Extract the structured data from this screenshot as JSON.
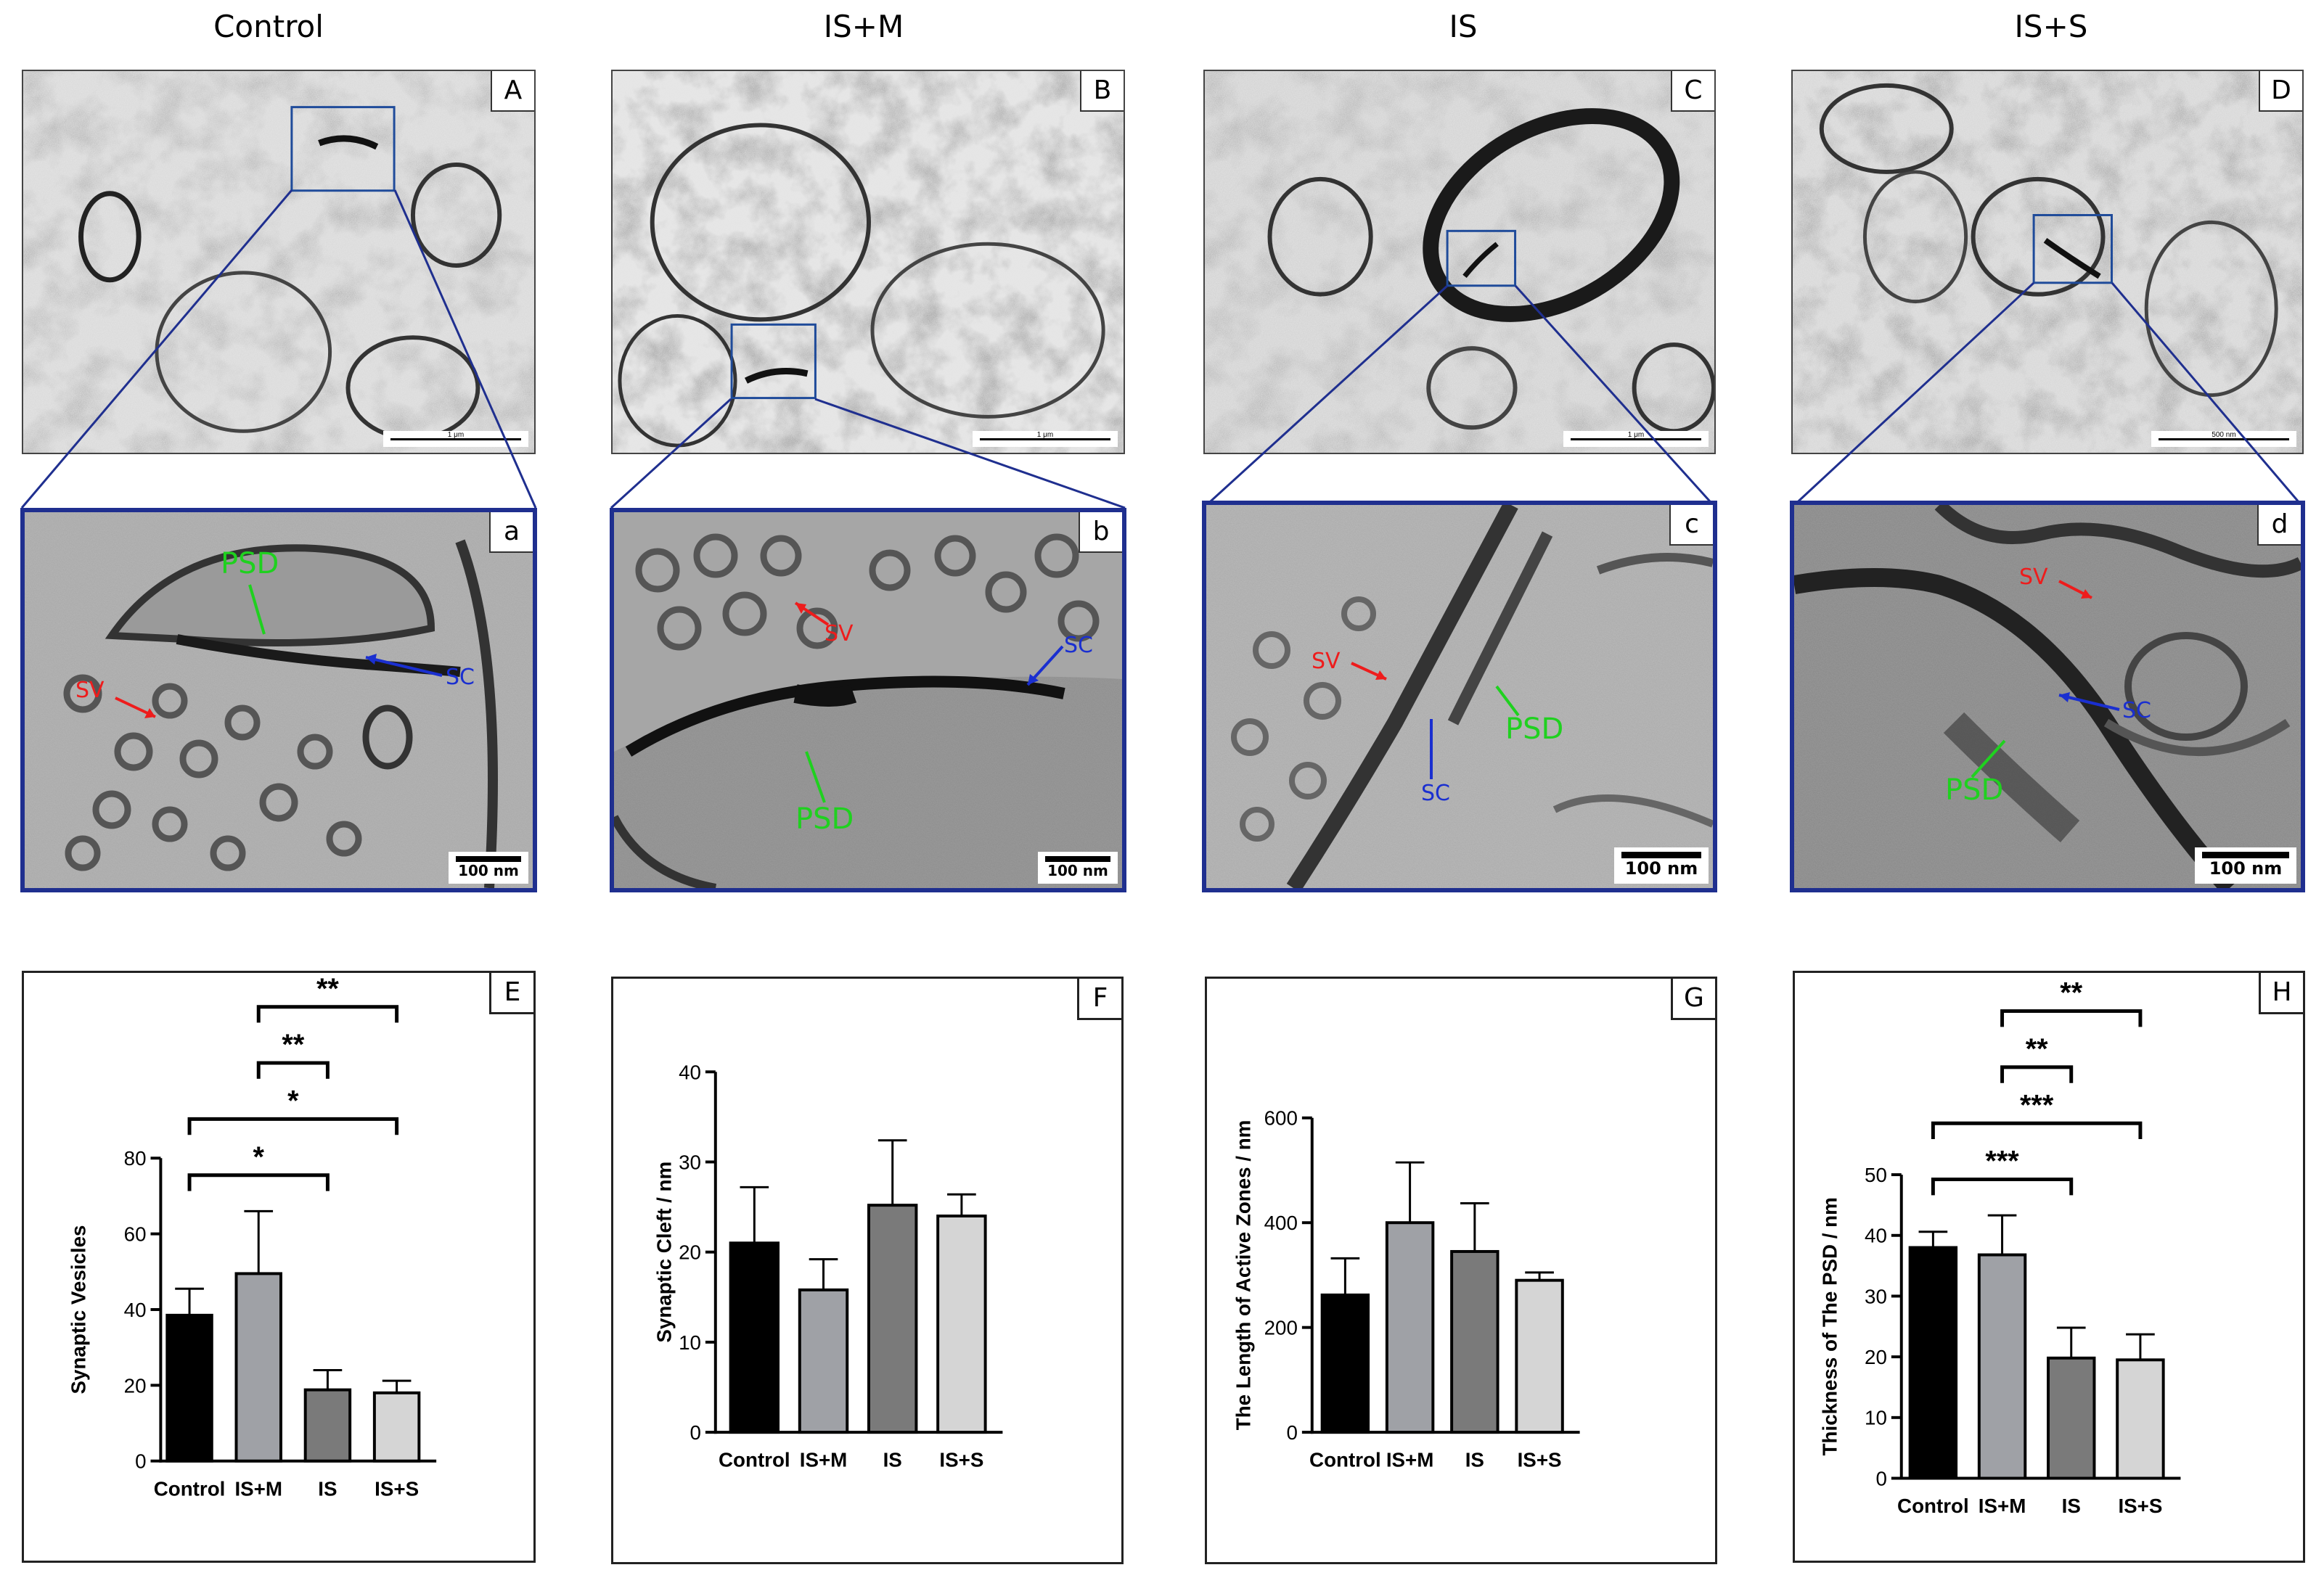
{
  "columns": [
    {
      "title": "Control",
      "letter": "A",
      "zoom_letter": "a",
      "scale_text": "1 μm",
      "zoom_scale": "100 nm"
    },
    {
      "title": "IS+M",
      "letter": "B",
      "zoom_letter": "b",
      "scale_text": "1 μm",
      "zoom_scale": "100 nm"
    },
    {
      "title": "IS",
      "letter": "C",
      "zoom_letter": "c",
      "scale_text": "1 μm",
      "zoom_scale": "100 nm"
    },
    {
      "title": "IS+S",
      "letter": "D",
      "zoom_letter": "d",
      "scale_text": "500 nm",
      "zoom_scale": "100 nm"
    }
  ],
  "annotations": {
    "psd": "PSD",
    "sv": "SV",
    "sc": "SC",
    "colors": {
      "psd": "#1fd11f",
      "sv": "#ee1c1c",
      "sc": "#1a2fd0"
    }
  },
  "colors": {
    "frame": "#1f2f8f",
    "bar_fills": [
      "#000000",
      "#9fa1a6",
      "#7a7a7a",
      "#d5d5d5"
    ]
  },
  "chart_data": [
    {
      "type": "bar",
      "panel": "E",
      "categories": [
        "Control",
        "IS+M",
        "IS",
        "IS+S"
      ],
      "values": [
        38.5,
        49.5,
        18.8,
        18.0
      ],
      "errors": [
        7.0,
        16.5,
        5.2,
        3.2
      ],
      "ylabel": "Synaptic Vesicles",
      "ylim": [
        0,
        80
      ],
      "yticks": [
        "0",
        "20",
        "40",
        "60",
        "80"
      ],
      "significance": [
        {
          "from": 0,
          "to": 2,
          "label": "*"
        },
        {
          "from": 0,
          "to": 3,
          "label": "*"
        },
        {
          "from": 1,
          "to": 2,
          "label": "**"
        },
        {
          "from": 1,
          "to": 3,
          "label": "**"
        }
      ]
    },
    {
      "type": "bar",
      "panel": "F",
      "categories": [
        "Control",
        "IS+M",
        "IS",
        "IS+S"
      ],
      "values": [
        21.0,
        15.8,
        25.2,
        24.0
      ],
      "errors": [
        6.2,
        3.4,
        7.2,
        2.4
      ],
      "ylabel": "Synaptic Cleft / nm",
      "ylim": [
        0,
        40
      ],
      "yticks": [
        "0",
        "10",
        "20",
        "30",
        "40"
      ],
      "significance": []
    },
    {
      "type": "bar",
      "panel": "G",
      "categories": [
        "Control",
        "IS+M",
        "IS",
        "IS+S"
      ],
      "values": [
        262,
        400,
        345,
        290
      ],
      "errors": [
        70,
        115,
        92,
        15
      ],
      "ylabel": "The Length of Active Zones / nm",
      "ylim": [
        0,
        600
      ],
      "yticks": [
        "0",
        "200",
        "400",
        "600"
      ],
      "significance": []
    },
    {
      "type": "bar",
      "panel": "H",
      "categories": [
        "Control",
        "IS+M",
        "IS",
        "IS+S"
      ],
      "values": [
        38.0,
        36.8,
        19.8,
        19.5
      ],
      "errors": [
        2.6,
        6.5,
        5.0,
        4.2
      ],
      "ylabel": "Thickness of The PSD / nm",
      "ylim": [
        0,
        50
      ],
      "yticks": [
        "0",
        "10",
        "20",
        "30",
        "40",
        "50"
      ],
      "significance": [
        {
          "from": 0,
          "to": 2,
          "label": "***"
        },
        {
          "from": 0,
          "to": 3,
          "label": "***"
        },
        {
          "from": 1,
          "to": 2,
          "label": "**"
        },
        {
          "from": 1,
          "to": 3,
          "label": "**"
        }
      ]
    }
  ]
}
